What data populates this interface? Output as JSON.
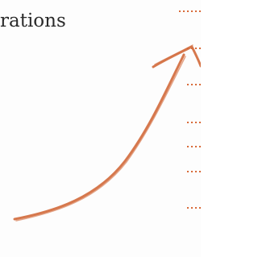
{
  "header": {
    "title": "rations"
  }
}
